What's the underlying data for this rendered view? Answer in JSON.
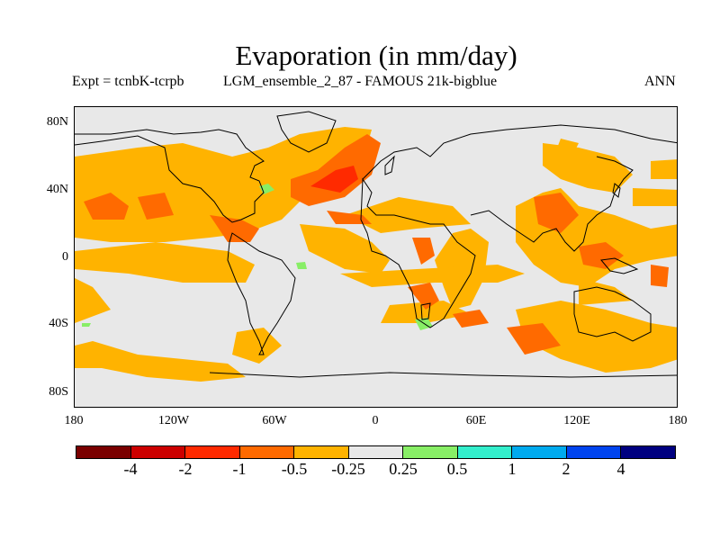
{
  "title": "Evaporation (in mm/day)",
  "experiment": "Expt = tcnbK-tcrpb",
  "ensemble": "LGM_ensemble_2_87 - FAMOUS 21k-bigblue",
  "season": "ANN",
  "lat_labels": [
    "80N",
    "40N",
    "0",
    "40S",
    "80S"
  ],
  "lon_labels": [
    "180",
    "120W",
    "60W",
    "0",
    "60E",
    "120E",
    "180"
  ],
  "colorbar": {
    "colors": [
      "#7a0000",
      "#cc0000",
      "#ff2a00",
      "#ff6a00",
      "#ffb300",
      "#e8e8e8",
      "#88ee66",
      "#33eecc",
      "#00aaee",
      "#0044ee",
      "#000080"
    ],
    "labels": [
      "-4",
      "-2",
      "-1",
      "-0.5",
      "-0.25",
      "0.25",
      "0.5",
      "1",
      "2",
      "4"
    ]
  }
}
